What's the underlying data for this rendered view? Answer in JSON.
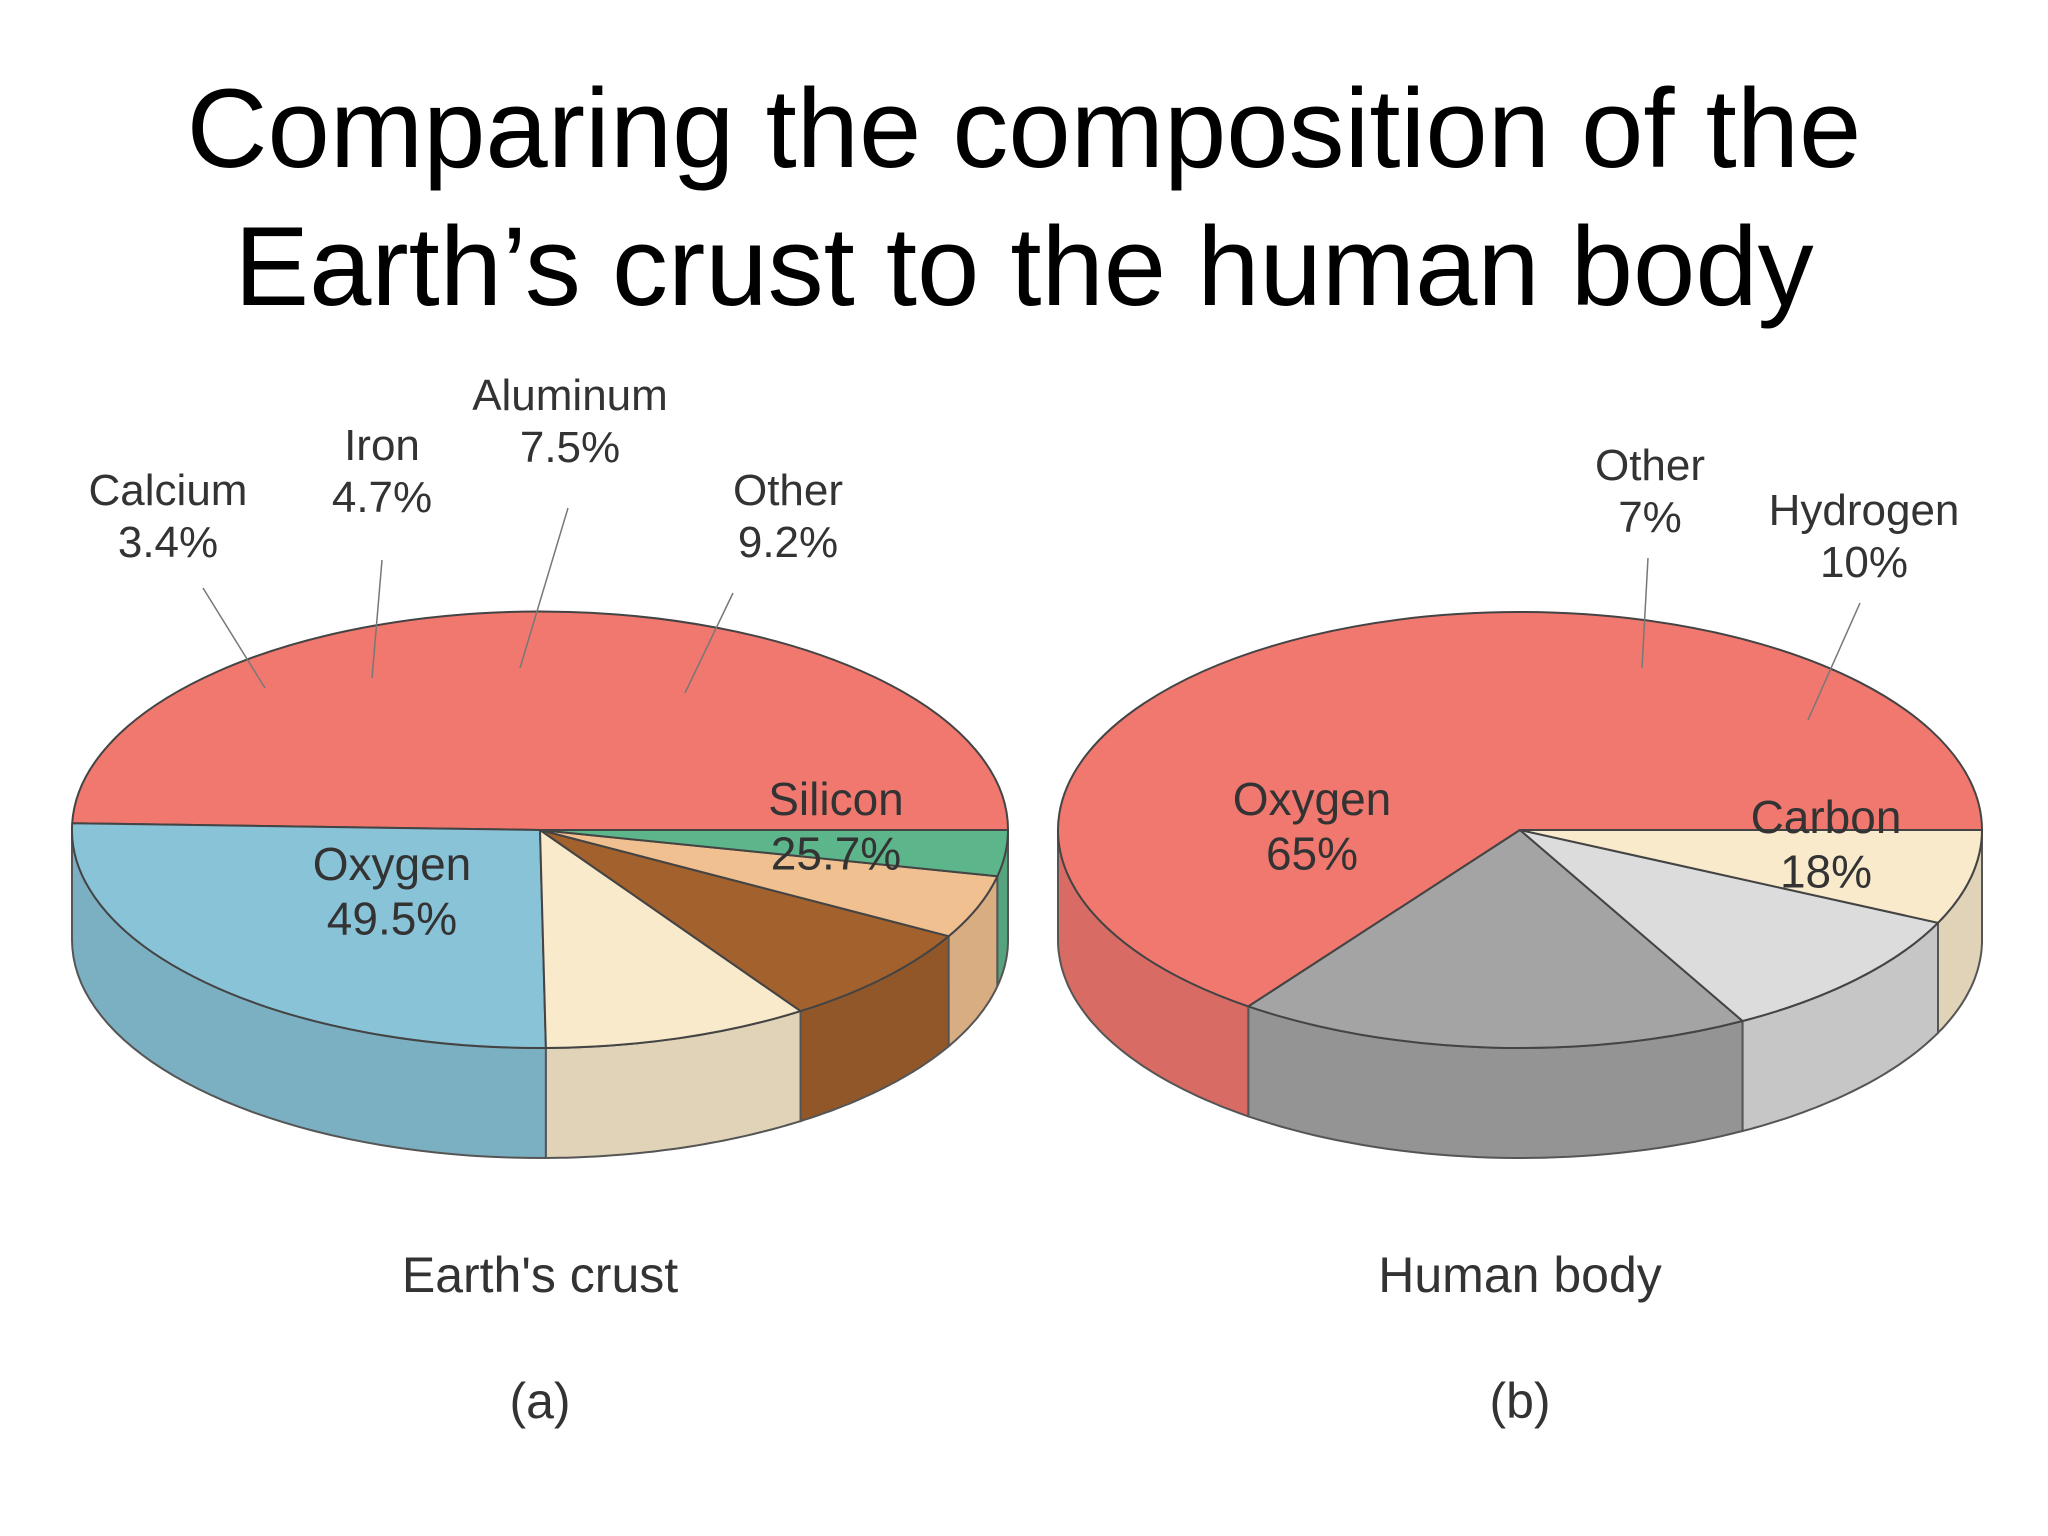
{
  "title": {
    "line1": "Comparing the composition of the",
    "line2": "Earth’s crust to the human body"
  },
  "chart_data": [
    {
      "type": "pie",
      "title": "Earth's crust",
      "panel": "(a)",
      "slices": [
        {
          "label": "Oxygen",
          "value": 49.5,
          "value_text": "49.5%",
          "color": "#f0786f"
        },
        {
          "label": "Silicon",
          "value": 25.7,
          "value_text": "25.7%",
          "color": "#89c3d8"
        },
        {
          "label": "Other",
          "value": 9.2,
          "value_text": "9.2%",
          "color": "#faeacc"
        },
        {
          "label": "Aluminum",
          "value": 7.5,
          "value_text": "7.5%",
          "color": "#a2612d"
        },
        {
          "label": "Iron",
          "value": 4.7,
          "value_text": "4.7%",
          "color": "#f0c090"
        },
        {
          "label": "Calcium",
          "value": 3.4,
          "value_text": "3.4%",
          "color": "#5db68b"
        }
      ]
    },
    {
      "type": "pie",
      "title": "Human body",
      "panel": "(b)",
      "slices": [
        {
          "label": "Oxygen",
          "value": 65,
          "value_text": "65%",
          "color": "#f0786f"
        },
        {
          "label": "Carbon",
          "value": 18,
          "value_text": "18%",
          "color": "#a4a4a4"
        },
        {
          "label": "Hydrogen",
          "value": 10,
          "value_text": "10%",
          "color": "#dcdcdc"
        },
        {
          "label": "Other",
          "value": 7,
          "value_text": "7%",
          "color": "#faeacc"
        }
      ]
    }
  ]
}
